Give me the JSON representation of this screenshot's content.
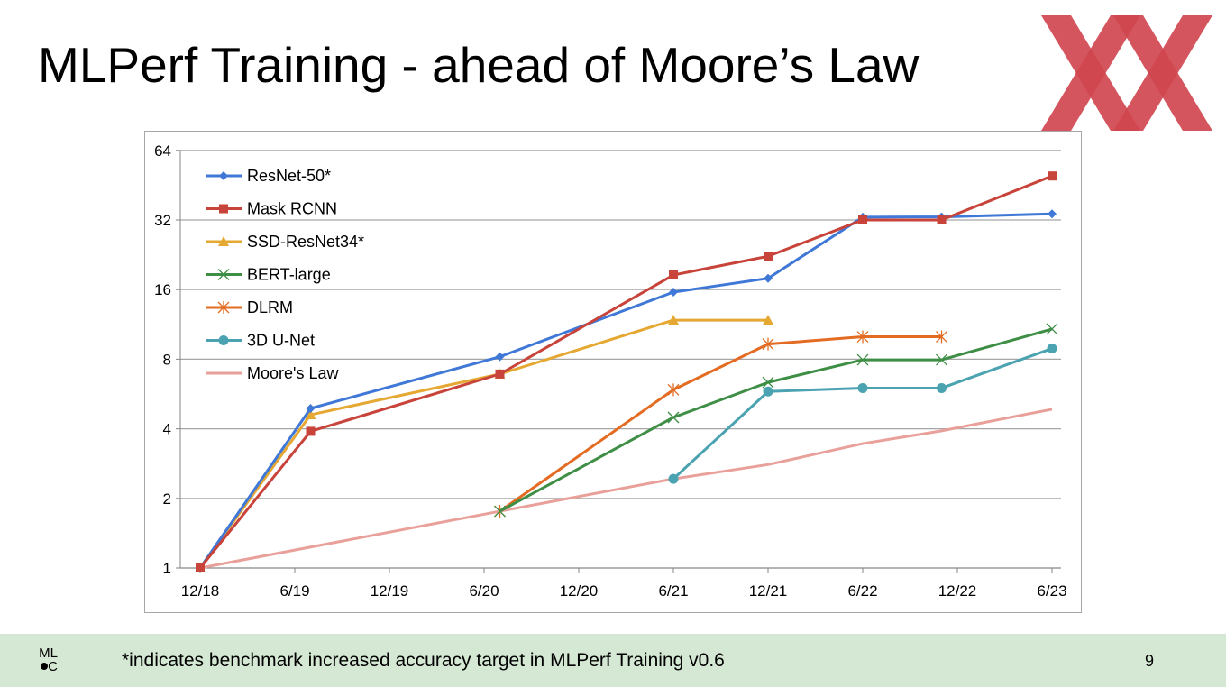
{
  "slide": {
    "title": "MLPerf Training - ahead of Moore’s Law",
    "footnote": "*indicates benchmark increased accuracy target in MLPerf Training v0.6",
    "page_number": "9",
    "footer_logo_text": "ML C",
    "logo_color": "#D0474F",
    "footer_color": "#D5E8D4"
  },
  "chart_data": {
    "type": "line",
    "title": "",
    "xlabel": "",
    "ylabel": "",
    "y_scale": "log2",
    "ylim": [
      1,
      64
    ],
    "y_ticks": [
      1,
      2,
      4,
      8,
      16,
      32,
      64
    ],
    "x_ticks": [
      "12/18",
      "6/19",
      "12/19",
      "6/20",
      "12/20",
      "6/21",
      "12/21",
      "6/22",
      "12/22",
      "6/23"
    ],
    "x_tick_dates": [
      "2018-12",
      "2019-06",
      "2019-12",
      "2020-06",
      "2020-12",
      "2021-06",
      "2021-12",
      "2022-06",
      "2022-12",
      "2023-06"
    ],
    "grid": "horizontal",
    "legend": "top-left",
    "series": [
      {
        "name": "ResNet-50*",
        "color": "#3F78D6",
        "marker": "diamond",
        "x": [
          "2018-12",
          "2019-07",
          "2020-07",
          "2021-06",
          "2021-12",
          "2022-06",
          "2022-11",
          "2023-06"
        ],
        "y": [
          1,
          4.9,
          8.2,
          15.6,
          17.9,
          32.9,
          33,
          34
        ]
      },
      {
        "name": "Mask RCNN",
        "color": "#C8433A",
        "marker": "square",
        "x": [
          "2018-12",
          "2019-07",
          "2020-07",
          "2021-06",
          "2021-12",
          "2022-06",
          "2022-11",
          "2023-06"
        ],
        "y": [
          1,
          3.9,
          6.9,
          18.5,
          22.3,
          32,
          32,
          49.6
        ]
      },
      {
        "name": "SSD-ResNet34*",
        "color": "#E5A832",
        "marker": "triangle",
        "x": [
          "2018-12",
          "2019-07",
          "2020-07",
          "2021-06",
          "2021-12"
        ],
        "y": [
          1,
          4.6,
          6.9,
          11.8,
          11.8
        ]
      },
      {
        "name": "BERT-large",
        "color": "#3E8E45",
        "marker": "x",
        "x": [
          "2020-07",
          "2021-06",
          "2021-12",
          "2022-06",
          "2022-11",
          "2023-06"
        ],
        "y": [
          1.76,
          4.48,
          6.35,
          7.95,
          7.95,
          10.8
        ]
      },
      {
        "name": "DLRM",
        "color": "#E36C22",
        "marker": "asterisk",
        "x": [
          "2020-07",
          "2021-06",
          "2021-12",
          "2022-06",
          "2022-11"
        ],
        "y": [
          1.76,
          5.9,
          9.3,
          10,
          10
        ]
      },
      {
        "name": "3D U-Net",
        "color": "#4BA3B2",
        "marker": "circle",
        "x": [
          "2021-06",
          "2021-12",
          "2022-06",
          "2022-11",
          "2023-06"
        ],
        "y": [
          2.43,
          5.8,
          6.0,
          6.0,
          8.9
        ]
      },
      {
        "name": "Moore's Law",
        "color": "#E9A09A",
        "marker": "none",
        "x": [
          "2018-12",
          "2020-07",
          "2021-06",
          "2021-12",
          "2022-06",
          "2022-11",
          "2023-06"
        ],
        "y": [
          1,
          1.76,
          2.43,
          2.8,
          3.45,
          3.92,
          4.86
        ]
      }
    ]
  }
}
